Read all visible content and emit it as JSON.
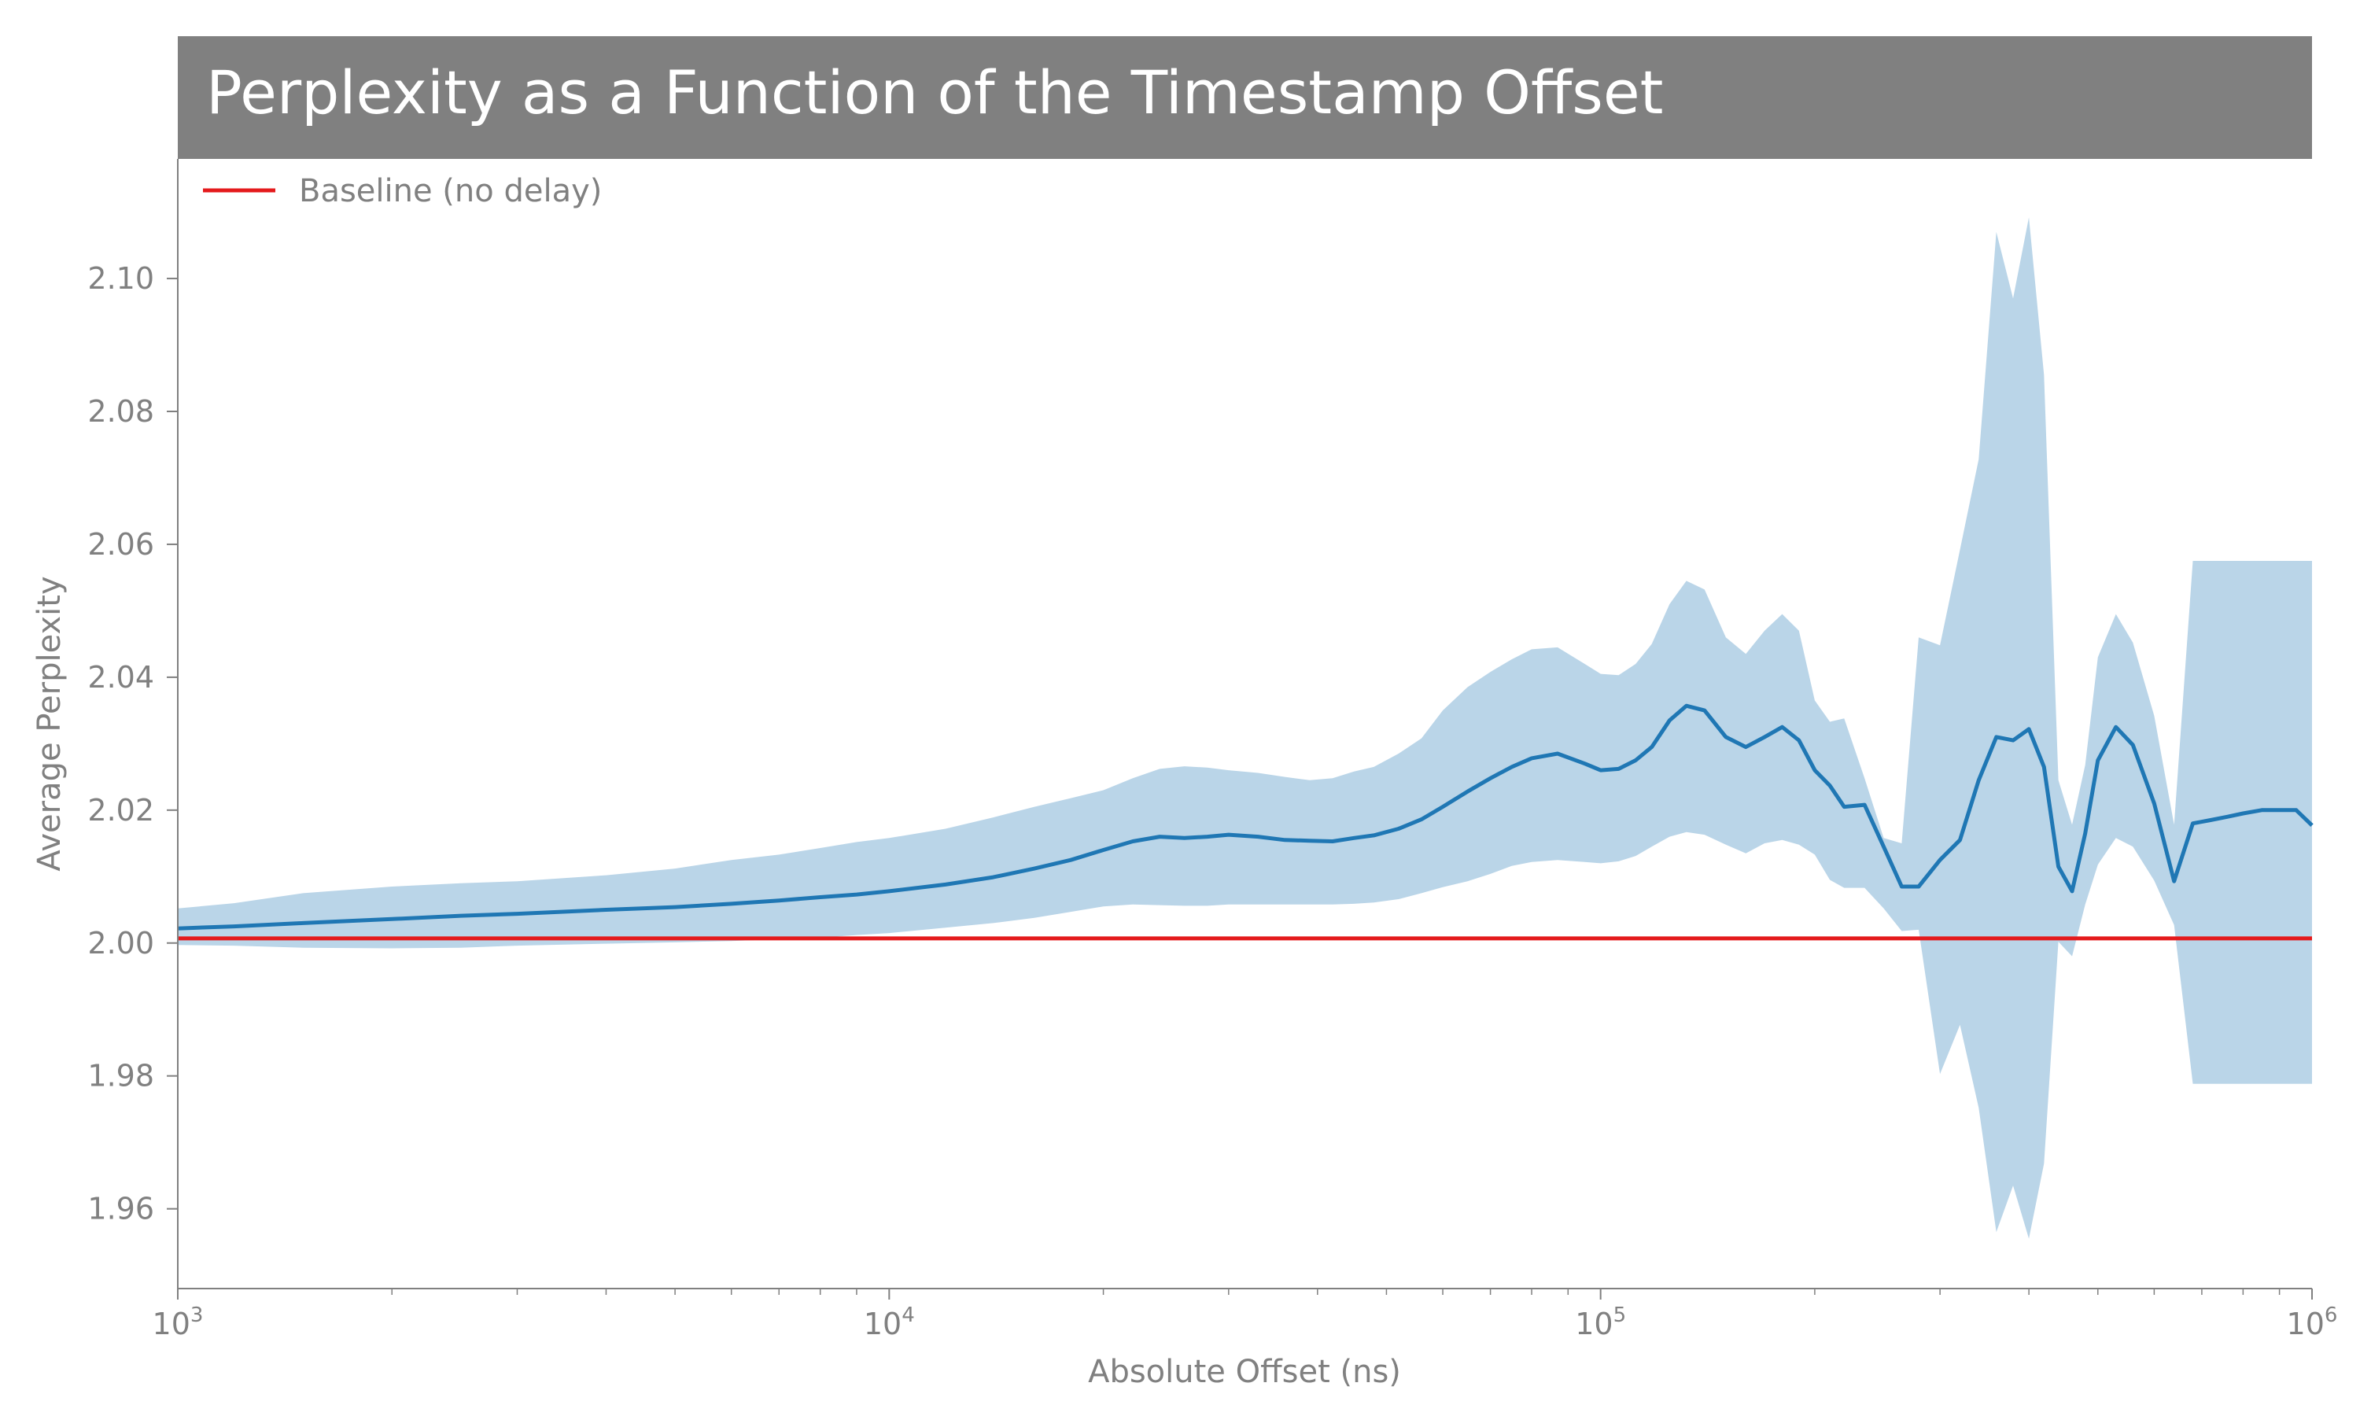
{
  "chart_data": {
    "type": "line",
    "title": "Perplexity as a Function of the Timestamp Offset",
    "xlabel": "Absolute Offset (ns)",
    "ylabel": "Average Perplexity",
    "xscale": "log",
    "xlim": [
      1000,
      1000000
    ],
    "ylim": [
      1.948,
      2.118
    ],
    "x_ticks": [
      {
        "base": "10",
        "exp": "3",
        "value": 1000
      },
      {
        "base": "10",
        "exp": "4",
        "value": 10000
      },
      {
        "base": "10",
        "exp": "5",
        "value": 100000
      },
      {
        "base": "10",
        "exp": "6",
        "value": 1000000
      }
    ],
    "y_ticks": [
      "1.96",
      "1.98",
      "2.00",
      "2.02",
      "2.04",
      "2.06",
      "2.08",
      "2.10"
    ],
    "legend": {
      "entries": [
        "Baseline (no delay)"
      ],
      "position": "upper-left"
    },
    "baseline": {
      "name": "Baseline (no delay)",
      "value": 2.0007,
      "color": "#e41a1c"
    },
    "colors": {
      "mean": "#1f77b4",
      "band": "#bad5e8",
      "title_bar": "#808080"
    },
    "series": [
      {
        "x": [
          1000,
          1200,
          1500,
          2000,
          2500,
          3000,
          4000,
          5000,
          6000,
          7000,
          8000,
          9000,
          10000,
          12000,
          14000,
          16000,
          18000,
          20000,
          22000,
          24000,
          26000,
          28000,
          30000,
          33000,
          36000,
          39000,
          42000,
          45000,
          48000,
          52000,
          56000,
          60000,
          65000,
          70000,
          75000,
          80000,
          87000,
          95000,
          100000,
          106000,
          112000,
          118000,
          125000,
          132000,
          140000,
          150000,
          160000,
          170000,
          180000,
          190000,
          200000,
          210000,
          220000,
          235000,
          250000,
          265000,
          280000,
          300000,
          320000,
          340000,
          360000,
          380000,
          400000,
          420000,
          440000,
          460000,
          480000,
          500000,
          530000,
          560000,
          600000,
          640000,
          680000,
          720000,
          760000,
          800000,
          850000,
          900000,
          950000,
          1000000
        ],
        "mean": [
          2.0022,
          2.0025,
          2.003,
          2.0036,
          2.0041,
          2.0044,
          2.005,
          2.0054,
          2.0059,
          2.0064,
          2.0069,
          2.0073,
          2.0078,
          2.0088,
          2.0099,
          2.0112,
          2.0125,
          2.014,
          2.0153,
          2.016,
          2.0158,
          2.016,
          2.0163,
          2.016,
          2.0155,
          2.0154,
          2.0153,
          2.0158,
          2.0162,
          2.0172,
          2.0186,
          2.0205,
          2.0228,
          2.0248,
          2.0265,
          2.0278,
          2.0285,
          2.027,
          2.026,
          2.0262,
          2.0275,
          2.0295,
          2.0335,
          2.0357,
          2.035,
          2.031,
          2.0295,
          2.031,
          2.0325,
          2.0305,
          2.026,
          2.0237,
          2.0205,
          2.0208,
          2.0145,
          2.0085,
          2.0085,
          2.0125,
          2.0155,
          2.0245,
          2.031,
          2.0305,
          2.0322,
          2.0265,
          2.0115,
          2.0078,
          2.0165,
          2.0275,
          2.0325,
          2.0298,
          2.021,
          2.0093,
          2.018,
          2.0185,
          2.019,
          2.0195,
          2.02,
          2.02,
          2.02,
          2.0177
        ],
        "upper": [
          2.0052,
          2.006,
          2.0075,
          2.0085,
          2.009,
          2.0093,
          2.0102,
          2.0112,
          2.0125,
          2.0133,
          2.0143,
          2.0152,
          2.0158,
          2.0172,
          2.0189,
          2.0205,
          2.0218,
          2.023,
          2.0248,
          2.0262,
          2.0266,
          2.0264,
          2.026,
          2.0256,
          2.025,
          2.0245,
          2.0248,
          2.0258,
          2.0265,
          2.0285,
          2.0308,
          2.035,
          2.0385,
          2.0408,
          2.0427,
          2.0442,
          2.0445,
          2.042,
          2.0405,
          2.0403,
          2.042,
          2.045,
          2.051,
          2.0545,
          2.0532,
          2.046,
          2.0435,
          2.047,
          2.0495,
          2.047,
          2.0365,
          2.0333,
          2.0338,
          2.0248,
          2.0158,
          2.015,
          2.046,
          2.0448,
          2.0592,
          2.0728,
          2.107,
          2.097,
          2.1092,
          2.0855,
          2.0245,
          2.0178,
          2.0268,
          2.043,
          2.0495,
          2.0452,
          2.0342,
          2.0178,
          2.0575,
          2.0575,
          2.0575,
          2.0575,
          2.0575,
          2.0575,
          2.0575,
          2.0575
        ],
        "lower": [
          1.9997,
          1.9996,
          1.9993,
          1.9992,
          1.9993,
          1.9996,
          1.9999,
          2.0001,
          2.0003,
          2.0006,
          2.0008,
          2.0012,
          2.0015,
          2.0023,
          2.003,
          2.0038,
          2.0047,
          2.0055,
          2.0058,
          2.0057,
          2.0056,
          2.0056,
          2.0058,
          2.0058,
          2.0058,
          2.0058,
          2.0058,
          2.0059,
          2.0061,
          2.0066,
          2.0075,
          2.0084,
          2.0093,
          2.0104,
          2.0116,
          2.0122,
          2.0125,
          2.0122,
          2.012,
          2.0123,
          2.0131,
          2.0145,
          2.016,
          2.0167,
          2.0163,
          2.0148,
          2.0135,
          2.015,
          2.0155,
          2.0148,
          2.0133,
          2.0095,
          2.0083,
          2.0083,
          2.0052,
          2.0018,
          2.002,
          1.9803,
          1.9877,
          1.9752,
          1.9565,
          1.9635,
          1.9555,
          1.9668,
          2.0002,
          1.998,
          2.0058,
          2.0118,
          2.0158,
          2.0145,
          2.0094,
          2.0027,
          1.9788,
          1.9788,
          1.9788,
          1.9788,
          1.9788,
          1.9788,
          1.9788,
          1.9788
        ]
      }
    ]
  }
}
